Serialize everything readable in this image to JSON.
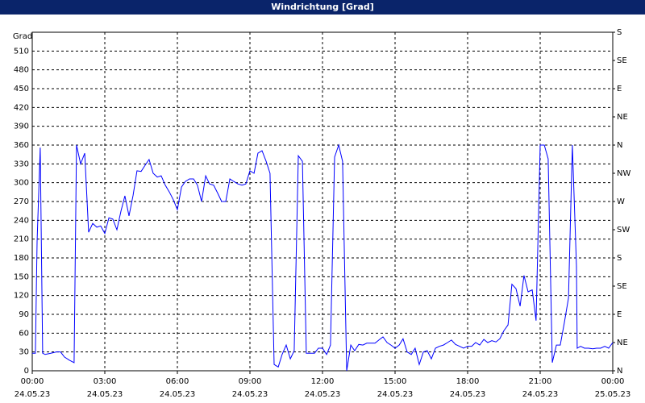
{
  "chart_data": {
    "type": "line",
    "title": "Windrichtung [Grad]",
    "y_label": "Grad",
    "x": [
      0,
      0.13,
      0.2,
      0.33,
      0.43,
      0.53,
      0.77,
      1,
      1.17,
      1.33,
      1.53,
      1.73,
      1.83,
      2,
      2.17,
      2.33,
      2.5,
      2.67,
      2.83,
      3,
      3.17,
      3.33,
      3.5,
      3.67,
      3.83,
      4,
      4.17,
      4.33,
      4.5,
      4.67,
      4.83,
      5,
      5.17,
      5.33,
      5.5,
      5.67,
      5.83,
      6,
      6.17,
      6.33,
      6.5,
      6.67,
      6.83,
      7,
      7.17,
      7.33,
      7.5,
      7.67,
      7.83,
      8,
      8.17,
      8.33,
      8.5,
      8.67,
      8.83,
      9,
      9.17,
      9.33,
      9.5,
      9.67,
      9.83,
      10,
      10.17,
      10.33,
      10.5,
      10.67,
      10.83,
      11,
      11.17,
      11.33,
      11.5,
      11.67,
      11.83,
      12,
      12.17,
      12.33,
      12.5,
      12.67,
      12.83,
      13,
      13.17,
      13.33,
      13.5,
      13.67,
      13.83,
      14,
      14.17,
      14.33,
      14.5,
      14.67,
      14.83,
      15,
      15.17,
      15.33,
      15.5,
      15.67,
      15.83,
      16,
      16.17,
      16.33,
      16.5,
      16.67,
      16.83,
      17,
      17.17,
      17.33,
      17.5,
      17.67,
      17.83,
      18,
      18.17,
      18.33,
      18.5,
      18.67,
      18.83,
      19,
      19.17,
      19.33,
      19.5,
      19.67,
      19.83,
      20,
      20.17,
      20.33,
      20.5,
      20.67,
      20.83,
      21,
      21.17,
      21.33,
      21.5,
      21.67,
      21.83,
      22,
      22.17,
      22.33,
      22.5,
      22.53,
      22.67,
      22.83,
      23,
      23.17,
      23.33,
      23.5,
      23.67,
      23.83,
      24
    ],
    "series": [
      {
        "name": "Windrichtung",
        "color": "#0000ff",
        "values": [
          28,
          28,
          206,
          356,
          28,
          26,
          28,
          30,
          30,
          22,
          17,
          13,
          360,
          330,
          347,
          221,
          235,
          229,
          231,
          219,
          244,
          242,
          225,
          255,
          279,
          247,
          280,
          319,
          318,
          328,
          337,
          315,
          309,
          311,
          296,
          285,
          273,
          257,
          293,
          302,
          306,
          306,
          296,
          270,
          311,
          298,
          296,
          283,
          270,
          270,
          306,
          302,
          298,
          296,
          298,
          319,
          315,
          347,
          351,
          334,
          315,
          10,
          6,
          26,
          41,
          19,
          32,
          343,
          334,
          28,
          28,
          28,
          36,
          36,
          26,
          41,
          341,
          360,
          334,
          0,
          41,
          32,
          42,
          41,
          44,
          44,
          44,
          49,
          54,
          45,
          41,
          36,
          41,
          51,
          30,
          26,
          36,
          10,
          30,
          32,
          19,
          36,
          39,
          41,
          45,
          49,
          42,
          39,
          36,
          39,
          39,
          45,
          41,
          50,
          45,
          48,
          46,
          51,
          64,
          73,
          138,
          131,
          103,
          152,
          126,
          129,
          80,
          360,
          360,
          338,
          13,
          41,
          41,
          77,
          116,
          360,
          167,
          36,
          39,
          36,
          36,
          35,
          36,
          36,
          39,
          36,
          45
        ]
      }
    ],
    "xlim": [
      0,
      24
    ],
    "xticks": [
      {
        "value": 0,
        "label": "00:00"
      },
      {
        "value": 3,
        "label": "03:00"
      },
      {
        "value": 6,
        "label": "06:00"
      },
      {
        "value": 9,
        "label": "09:00"
      },
      {
        "value": 12,
        "label": "12:00"
      },
      {
        "value": 15,
        "label": "15:00"
      },
      {
        "value": 18,
        "label": "18:00"
      },
      {
        "value": 21,
        "label": "21:00"
      },
      {
        "value": 24,
        "label": "00:00"
      }
    ],
    "xtick_dates": [
      "24.05.23",
      "24.05.23",
      "24.05.23",
      "24.05.23",
      "24.05.23",
      "24.05.23",
      "24.05.23",
      "24.05.23",
      "25.05.23"
    ],
    "ylim": [
      0,
      540
    ],
    "yticks": [
      0,
      30,
      60,
      90,
      120,
      150,
      180,
      210,
      240,
      270,
      300,
      330,
      360,
      390,
      420,
      450,
      480,
      510
    ],
    "y2lim": [
      0,
      540
    ],
    "y2ticks": [
      {
        "value": 0,
        "label": "N"
      },
      {
        "value": 45,
        "label": "NE"
      },
      {
        "value": 90,
        "label": "E"
      },
      {
        "value": 135,
        "label": "SE"
      },
      {
        "value": 180,
        "label": "S"
      },
      {
        "value": 225,
        "label": "SW"
      },
      {
        "value": 270,
        "label": "W"
      },
      {
        "value": 315,
        "label": "NW"
      },
      {
        "value": 360,
        "label": "N"
      },
      {
        "value": 405,
        "label": "NE"
      },
      {
        "value": 450,
        "label": "E"
      },
      {
        "value": 495,
        "label": "SE"
      },
      {
        "value": 540,
        "label": "S"
      }
    ],
    "grid": true
  }
}
